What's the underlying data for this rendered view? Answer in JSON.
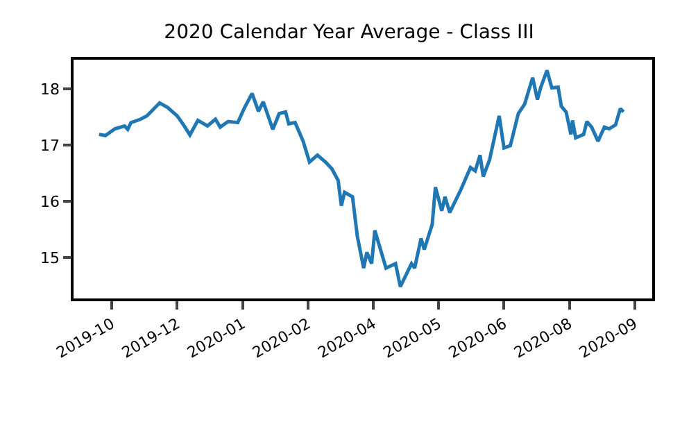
{
  "chart_data": {
    "type": "line",
    "title": "2020 Calendar Year Average - Class III",
    "x": [
      "2019-10-17",
      "2019-10-21",
      "2019-10-27",
      "2019-11-02",
      "2019-11-04",
      "2019-11-06",
      "2019-11-12",
      "2019-11-16",
      "2019-11-24",
      "2019-11-29",
      "2019-12-05",
      "2019-12-09",
      "2019-12-13",
      "2019-12-18",
      "2019-12-24",
      "2019-12-29",
      "2020-01-01",
      "2020-01-06",
      "2020-01-12",
      "2020-01-16",
      "2020-01-21",
      "2020-01-25",
      "2020-01-28",
      "2020-02-03",
      "2020-02-07",
      "2020-02-11",
      "2020-02-13",
      "2020-02-17",
      "2020-02-22",
      "2020-02-26",
      "2020-03-02",
      "2020-03-07",
      "2020-03-11",
      "2020-03-15",
      "2020-03-17",
      "2020-03-19",
      "2020-03-24",
      "2020-03-27",
      "2020-03-31",
      "2020-04-02",
      "2020-04-05",
      "2020-04-07",
      "2020-04-14",
      "2020-04-20",
      "2020-04-23",
      "2020-04-30",
      "2020-05-02",
      "2020-05-06",
      "2020-05-08",
      "2020-05-13",
      "2020-05-15",
      "2020-05-19",
      "2020-05-21",
      "2020-05-24",
      "2020-05-31",
      "2020-06-06",
      "2020-06-09",
      "2020-06-12",
      "2020-06-14",
      "2020-06-18",
      "2020-06-24",
      "2020-06-27",
      "2020-07-01",
      "2020-07-06",
      "2020-07-10",
      "2020-07-15",
      "2020-07-18",
      "2020-07-20",
      "2020-07-24",
      "2020-07-27",
      "2020-07-31",
      "2020-08-02",
      "2020-08-05",
      "2020-08-08",
      "2020-08-09",
      "2020-08-11",
      "2020-08-16",
      "2020-08-18",
      "2020-08-21",
      "2020-08-25",
      "2020-08-29",
      "2020-09-01",
      "2020-09-05",
      "2020-09-08",
      "2020-09-10"
    ],
    "series": [
      {
        "color": "#1f77b4",
        "values": [
          17.19,
          17.17,
          17.29,
          17.34,
          17.28,
          17.4,
          17.46,
          17.52,
          17.75,
          17.67,
          17.52,
          17.36,
          17.18,
          17.44,
          17.34,
          17.46,
          17.32,
          17.42,
          17.4,
          17.65,
          17.92,
          17.6,
          17.77,
          17.28,
          17.56,
          17.59,
          17.38,
          17.4,
          17.07,
          16.7,
          16.82,
          16.7,
          16.58,
          16.37,
          15.92,
          16.16,
          16.08,
          15.38,
          14.81,
          15.09,
          14.89,
          15.48,
          14.81,
          14.89,
          14.48,
          14.89,
          14.81,
          15.34,
          15.14,
          15.59,
          16.25,
          15.83,
          16.08,
          15.8,
          16.21,
          16.6,
          16.54,
          16.82,
          16.44,
          16.74,
          17.52,
          16.95,
          16.99,
          17.56,
          17.73,
          18.2,
          17.81,
          18.02,
          18.33,
          18.02,
          18.03,
          17.69,
          17.59,
          17.19,
          17.44,
          17.13,
          17.19,
          17.42,
          17.32,
          17.07,
          17.32,
          17.29,
          17.36,
          17.65,
          17.59
        ]
      }
    ],
    "xlim": [
      "2019-10-01",
      "2020-09-28"
    ],
    "xticks": [
      {
        "value": "2019-10-25",
        "label": "2019-10"
      },
      {
        "value": "2019-12-05",
        "label": "2019-12"
      },
      {
        "value": "2020-01-15",
        "label": "2020-01"
      },
      {
        "value": "2020-02-25",
        "label": "2020-02"
      },
      {
        "value": "2020-04-06",
        "label": "2020-04"
      },
      {
        "value": "2020-05-17",
        "label": "2020-05"
      },
      {
        "value": "2020-06-27",
        "label": "2020-06"
      },
      {
        "value": "2020-08-07",
        "label": "2020-08"
      },
      {
        "value": "2020-09-17",
        "label": "2020-09"
      }
    ],
    "ylim": [
      14.27,
      18.52
    ],
    "yticks": [
      15,
      16,
      17,
      18
    ],
    "marker": "none",
    "line_style": "solid"
  }
}
